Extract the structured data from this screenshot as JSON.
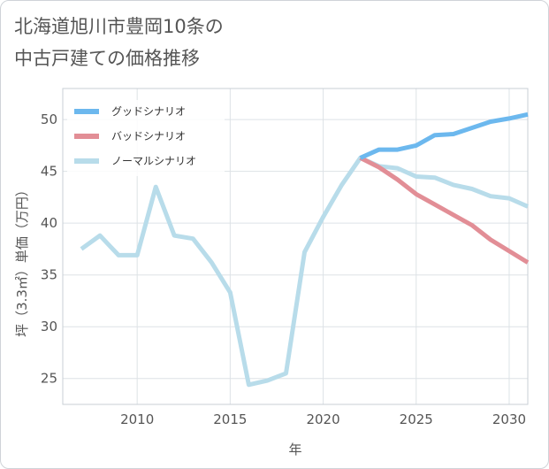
{
  "page": {
    "title_line1": "北海道旭川市豊岡10条の",
    "title_line2": "中古戸建ての価格推移"
  },
  "chart_data": {
    "type": "line",
    "title": "北海道旭川市豊岡10条の中古戸建ての価格推移",
    "xlabel": "年",
    "ylabel": "坪（3.3㎡）単価（万円）",
    "xlim": [
      2006,
      2031
    ],
    "ylim": [
      22.5,
      53
    ],
    "x_ticks": [
      2010,
      2015,
      2020,
      2025,
      2030
    ],
    "y_ticks": [
      25,
      30,
      35,
      40,
      45,
      50
    ],
    "grid": true,
    "legend_position": "top-left",
    "series": [
      {
        "name": "グッドシナリオ",
        "color": "#6cb8ee",
        "x": [
          2022,
          2023,
          2024,
          2025,
          2026,
          2027,
          2028,
          2029,
          2030,
          2031
        ],
        "y": [
          46.3,
          47.1,
          47.1,
          47.5,
          48.5,
          48.6,
          49.2,
          49.8,
          50.1,
          50.5
        ]
      },
      {
        "name": "バッドシナリオ",
        "color": "#e28e96",
        "x": [
          2022,
          2023,
          2024,
          2025,
          2026,
          2027,
          2028,
          2029,
          2030,
          2031
        ],
        "y": [
          46.3,
          45.4,
          44.2,
          42.8,
          41.8,
          40.8,
          39.8,
          38.4,
          37.3,
          36.2
        ]
      },
      {
        "name": "ノーマルシナリオ",
        "color": "#b8dcea",
        "x": [
          2007,
          2008,
          2009,
          2010,
          2011,
          2012,
          2013,
          2014,
          2015,
          2016,
          2017,
          2018,
          2019,
          2020,
          2021,
          2022,
          2023,
          2024,
          2025,
          2026,
          2027,
          2028,
          2029,
          2030,
          2031
        ],
        "y": [
          37.5,
          38.8,
          36.9,
          36.9,
          43.5,
          38.8,
          38.5,
          36.2,
          33.3,
          24.4,
          24.8,
          25.5,
          37.2,
          40.6,
          43.7,
          46.3,
          45.5,
          45.3,
          44.5,
          44.4,
          43.7,
          43.3,
          42.6,
          42.4,
          41.6
        ]
      }
    ]
  }
}
